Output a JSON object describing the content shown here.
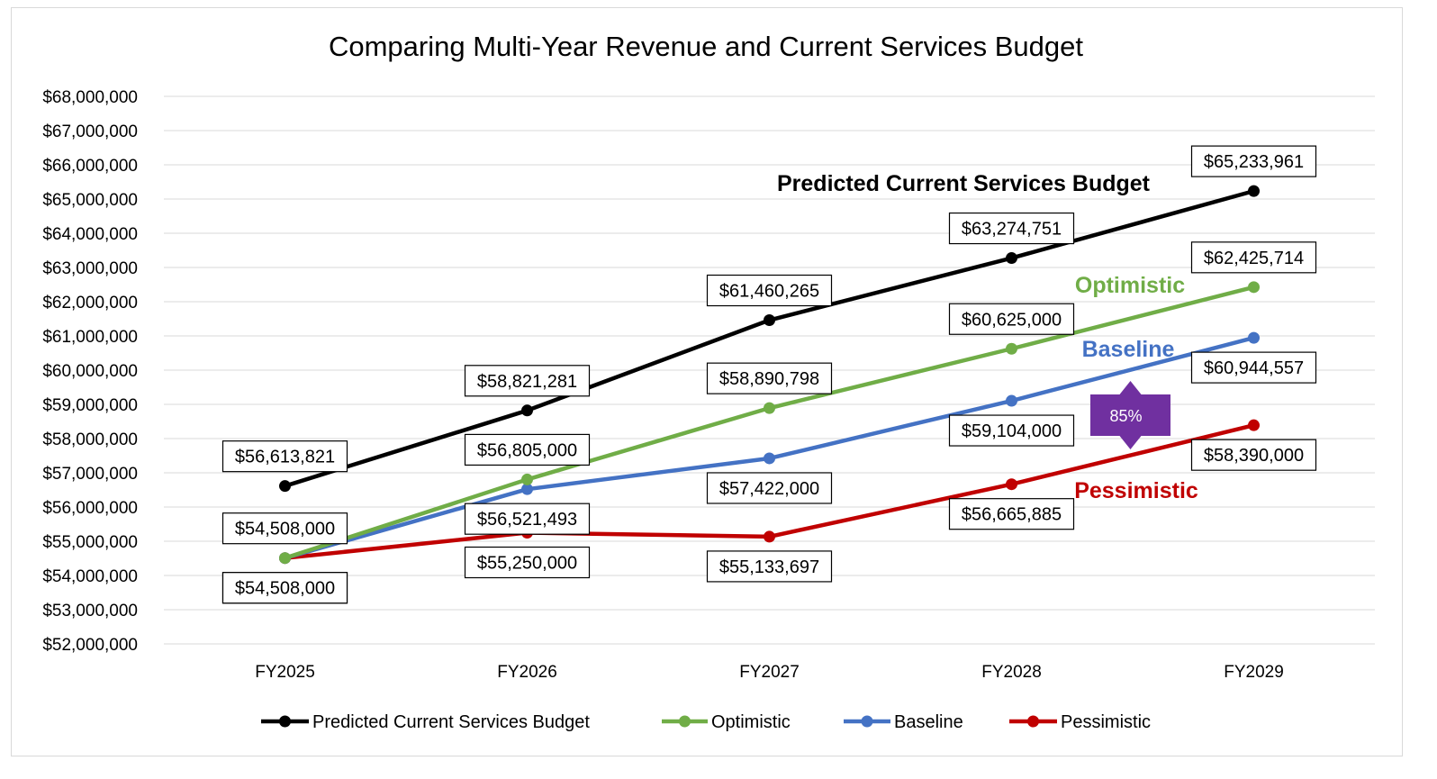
{
  "chart_data": {
    "type": "line",
    "title": "Comparing Multi-Year Revenue and Current Services Budget",
    "categories": [
      "FY2025",
      "FY2026",
      "FY2027",
      "FY2028",
      "FY2029"
    ],
    "ylim": [
      52000000,
      68000000
    ],
    "ystep": 1000000,
    "grid": true,
    "legend_position": "bottom",
    "series": [
      {
        "name": "Predicted Current Services Budget",
        "color": "#000000",
        "values": [
          56613821,
          58821281,
          61460265,
          63274751,
          65233961
        ],
        "labels": [
          "$56,613,821",
          "$58,821,281",
          "$61,460,265",
          "$63,274,751",
          "$65,233,961"
        ],
        "label_side": [
          "above",
          "above",
          "above",
          "above",
          "above"
        ],
        "annotation": "Predicted Current Services Budget"
      },
      {
        "name": "Optimistic",
        "color": "#70ad47",
        "values": [
          54508000,
          56805000,
          58890798,
          60625000,
          62425714
        ],
        "labels": [
          "$54,508,000",
          "$56,805,000",
          "$58,890,798",
          "$60,625,000",
          "$62,425,714"
        ],
        "label_side": [
          "above",
          "above",
          "above",
          "above",
          "above"
        ],
        "annotation": "Optimistic"
      },
      {
        "name": "Baseline",
        "color": "#4472c4",
        "values": [
          54508000,
          56521493,
          57422000,
          59104000,
          60944557
        ],
        "labels": [
          "$54,508,000",
          "$56,521,493",
          "$57,422,000",
          "$59,104,000",
          "$60,944,557"
        ],
        "label_side": [
          "below",
          "below",
          "below",
          "below",
          "below"
        ],
        "annotation": "Baseline"
      },
      {
        "name": "Pessimistic",
        "color": "#c00000",
        "values": [
          54508000,
          55250000,
          55133697,
          56665885,
          58390000
        ],
        "labels": [
          "$54,508,000",
          "$55,250,000",
          "$55,133,697",
          "$56,665,885",
          "$58,390,000"
        ],
        "label_side": [
          "below",
          "below",
          "below",
          "below",
          "below"
        ],
        "annotation": "Pessimistic"
      }
    ],
    "badge": {
      "text": "85%",
      "color": "#7030a0"
    }
  }
}
